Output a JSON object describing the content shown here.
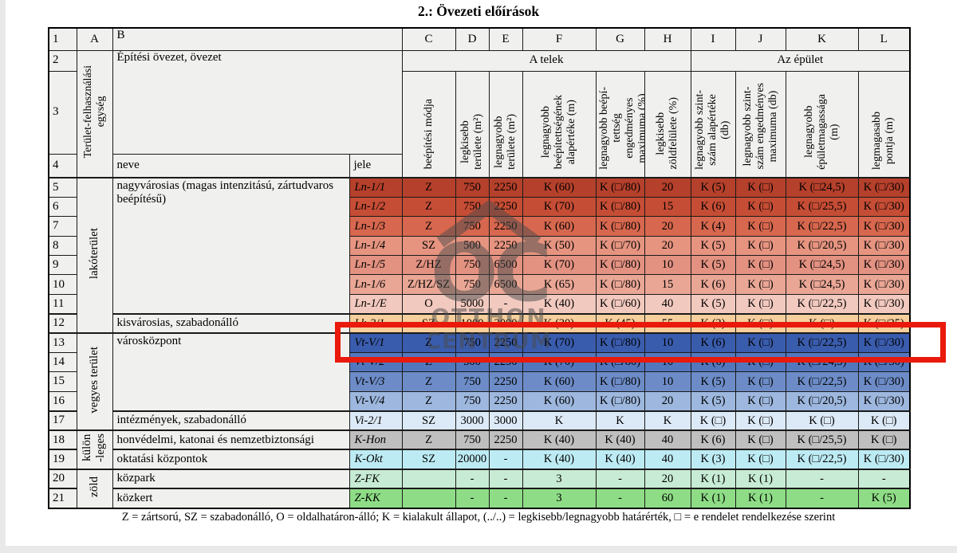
{
  "title": "2.: Övezeti előírások",
  "footer": "Z = zártsorú, SZ = szabadonálló, O = oldalhatáron-álló; K = kialakult állapot, (../..) = legkisebb/legnagyobb határérték, □ = e rendelet rendelkezése szerint",
  "watermark": {
    "monogram": "OC",
    "line1": "OTTHON",
    "line2": "CENTRUM"
  },
  "highlight": {
    "target_row": "13",
    "target_zone": "Vt-V/1",
    "color": "#e9190c"
  },
  "header": {
    "corner": "1",
    "col_letters": [
      "A",
      "B",
      "C",
      "D",
      "E",
      "F",
      "G",
      "H",
      "I",
      "J",
      "K",
      "L"
    ],
    "row2_num": "2",
    "row3_num": "3",
    "row4_num": "4",
    "unit": "Terület-felhasználási\negység",
    "zone": "Építési övezet, övezet",
    "plot_group": "A telek",
    "building_group": "Az épület",
    "neve": "neve",
    "jele": "jele",
    "columns": [
      "beépítési módja",
      "legkisebb\nterülete (m²)",
      "legnagyobb\nterülete (m²)",
      "legnagyobb\nbeépítettségének\nalapértéke (m)",
      "legnagyobb beépí-\ntettség\nengedményes\nmaximuma (%)",
      "legkisebb\nzöldfelülete (%)",
      "legnagyobb szint-\nszám alapértéke\n(db)",
      "legnagyobb szint-\nszám engedményes\nmaximuma (db)",
      "legnagyobb\népületmagassága\n(m)",
      "legmagasabb\npontja (m)"
    ]
  },
  "rows": [
    {
      "num": "5",
      "group": {
        "label": "lakóterület",
        "span": 8
      },
      "name": {
        "text": "nagyvárosias (magas intenzitású, zártudvaros beépítésű)",
        "span": 7
      },
      "jele": "Ln-1/1",
      "color": "#b5402b",
      "values": [
        "Z",
        "750",
        "2250",
        "K (60)",
        "K (□/80)",
        "20",
        "K (5)",
        "K (□)",
        "K (□24,5)",
        "K (□/30)"
      ]
    },
    {
      "num": "6",
      "jele": "Ln-1/2",
      "color": "#c64d35",
      "values": [
        "Z",
        "750",
        "2250",
        "K (70)",
        "K (□/80)",
        "15",
        "K (6)",
        "K (□)",
        "K (□/25,5)",
        "K (□/30)"
      ]
    },
    {
      "num": "7",
      "jele": "Ln-1/3",
      "color": "#d7674e",
      "values": [
        "Z",
        "750",
        "2250",
        "K (60)",
        "K (□/80)",
        "20",
        "K (4)",
        "K (□)",
        "K (□/22,5)",
        "K (□/30)"
      ]
    },
    {
      "num": "8",
      "jele": "Ln-1/4",
      "color": "#e69480",
      "values": [
        "SZ",
        "500",
        "2250",
        "K (50)",
        "K (□/70)",
        "20",
        "K (5)",
        "K (□)",
        "K (□/20,5)",
        "K (□/30)"
      ]
    },
    {
      "num": "9",
      "jele": "Ln-1/5",
      "color": "#e39181",
      "values": [
        "Z/HZ",
        "750",
        "6500",
        "K (70)",
        "K (□/80)",
        "10",
        "K (5)",
        "K (□)",
        "K (□24,5)",
        "K (□/30)"
      ]
    },
    {
      "num": "10",
      "jele": "Ln-1/6",
      "color": "#eaa695",
      "values": [
        "Z/HZ/SZ",
        "750",
        "6500",
        "K (65)",
        "K (□/80)",
        "15",
        "K (6)",
        "K (□)",
        "K (□24,5)",
        "K (□/30)"
      ]
    },
    {
      "num": "11",
      "jele": "Ln-1/E",
      "color": "#f2c9bf",
      "values": [
        "O",
        "5000",
        "-",
        "K (40)",
        "K (□/60)",
        "40",
        "K (5)",
        "K (□)",
        "K (□/22,5)",
        "K (□/30)"
      ]
    },
    {
      "num": "12",
      "name": {
        "text": "kisvárosias, szabadonálló",
        "span": 1
      },
      "jele": "Lk-2/1",
      "color": "#f6cf9c",
      "values": [
        "SZ",
        "1000",
        "3000",
        "K (30)",
        "K (45)",
        "55",
        "K (3)",
        "K (□)",
        "K (□)",
        "K (□/25)"
      ]
    },
    {
      "num": "13",
      "group": {
        "label": "vegyes terület",
        "span": 5
      },
      "name": {
        "text": "városközpont",
        "span": 4
      },
      "jele": "Vt-V/1",
      "color": "#3a5cad",
      "values": [
        "Z",
        "750",
        "2250",
        "K (70)",
        "K (□/80)",
        "10",
        "K (6)",
        "K (□)",
        "K (□/22,5)",
        "K (□/30)"
      ]
    },
    {
      "num": "14",
      "jele": "Vt-V/2",
      "color": "#5377bd",
      "values": [
        "Z",
        "500",
        "2250",
        "K (70)",
        "K (□/80)",
        "10",
        "K (6)",
        "K (□)",
        "K (□/24,5)",
        "K (□/30)"
      ]
    },
    {
      "num": "15",
      "jele": "Vt-V/3",
      "color": "#6d8cc7",
      "values": [
        "Z",
        "750",
        "2250",
        "K (60)",
        "K (□/80)",
        "10",
        "K (5)",
        "K (□)",
        "K (□/22,5)",
        "K (□/30)"
      ]
    },
    {
      "num": "16",
      "jele": "Vt-V/4",
      "color": "#9db7de",
      "values": [
        "Z",
        "750",
        "2250",
        "K (60)",
        "K (□/80)",
        "20",
        "K (5)",
        "K (□)",
        "K (□/20,5)",
        "K (□/30)"
      ]
    },
    {
      "num": "17",
      "name": {
        "text": "intézmények, szabadonálló",
        "span": 1
      },
      "jele": "Vi-2/1",
      "color": "#dce9f6",
      "values": [
        "SZ",
        "3000",
        "3000",
        "K",
        "K",
        "K",
        "K (□)",
        "K (□)",
        "K (□)",
        "K (□)"
      ]
    },
    {
      "num": "18",
      "group": {
        "label": "külön\n-leges",
        "span": 2
      },
      "name": {
        "text": "honvédelmi, katonai és nemzetbiztonsági",
        "span": 1
      },
      "jele": "K-Hon",
      "color": "#bfbfbf",
      "values": [
        "Z",
        "750",
        "2250",
        "K (40)",
        "K (40)",
        "40",
        "K (6)",
        "K (□)",
        "K (□/25,5)",
        "K (□)"
      ]
    },
    {
      "num": "19",
      "name": {
        "text": "oktatási központok",
        "span": 1
      },
      "jele": "K-Okt",
      "color": "#bdebf4",
      "values": [
        "SZ",
        "20000",
        "-",
        "K (40)",
        "K (40)",
        "40",
        "K (3)",
        "K (□)",
        "K (□/22,5)",
        "K (□/30)"
      ]
    },
    {
      "num": "20",
      "group": {
        "label": "zöld",
        "span": 2
      },
      "name": {
        "text": "közpark",
        "span": 1
      },
      "jele": "Z-FK",
      "color": "#c7ebd4",
      "values": [
        "",
        "-",
        "-",
        "3",
        "-",
        "20",
        "K (1)",
        "K (1)",
        "-",
        "-"
      ]
    },
    {
      "num": "21",
      "name": {
        "text": "közkert",
        "span": 1
      },
      "jele": "Z-KK",
      "color": "#8edd86",
      "values": [
        "",
        "-",
        "-",
        "3",
        "-",
        "60",
        "K (1)",
        "K (1)",
        "-",
        "K (5)"
      ]
    }
  ]
}
